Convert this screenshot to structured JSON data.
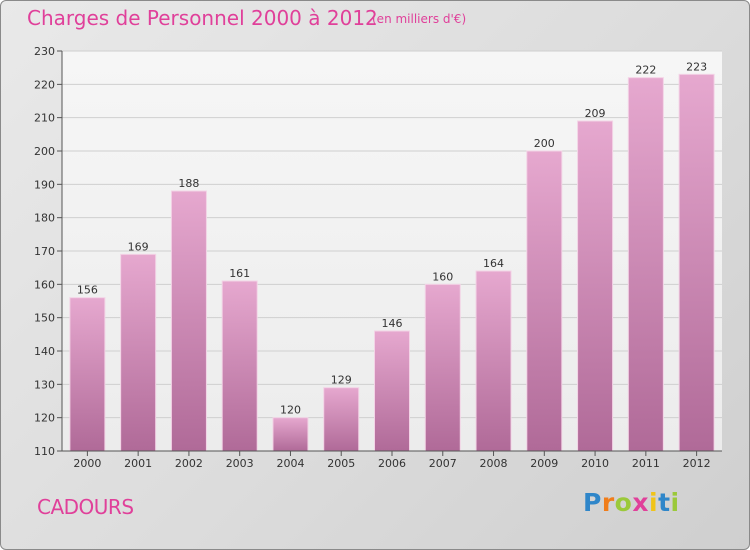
{
  "title": "Charges de Personnel 2000 à 2012",
  "subtitle": "(en milliers d'€)",
  "commune": "CADOURS",
  "logo": {
    "letters": [
      "P",
      "r",
      "o",
      "x",
      "i",
      "t",
      "i"
    ],
    "colors": [
      "#2f86c9",
      "#f07d1a",
      "#9bc93a",
      "#e0409a",
      "#f0c419",
      "#2f86c9",
      "#9bc93a"
    ]
  },
  "colors": {
    "accent": "#e0409a",
    "bar_top": "#e6a8cf",
    "bar_bottom": "#b06a98"
  },
  "chart_data": {
    "type": "bar",
    "categories": [
      "2000",
      "2001",
      "2002",
      "2003",
      "2004",
      "2005",
      "2006",
      "2007",
      "2008",
      "2009",
      "2010",
      "2011",
      "2012"
    ],
    "values": [
      156,
      169,
      188,
      161,
      120,
      129,
      146,
      160,
      164,
      200,
      209,
      222,
      223
    ],
    "ylim": [
      110,
      230
    ],
    "yticks": [
      110,
      120,
      130,
      140,
      150,
      160,
      170,
      180,
      190,
      200,
      210,
      220,
      230
    ],
    "grid": true
  }
}
